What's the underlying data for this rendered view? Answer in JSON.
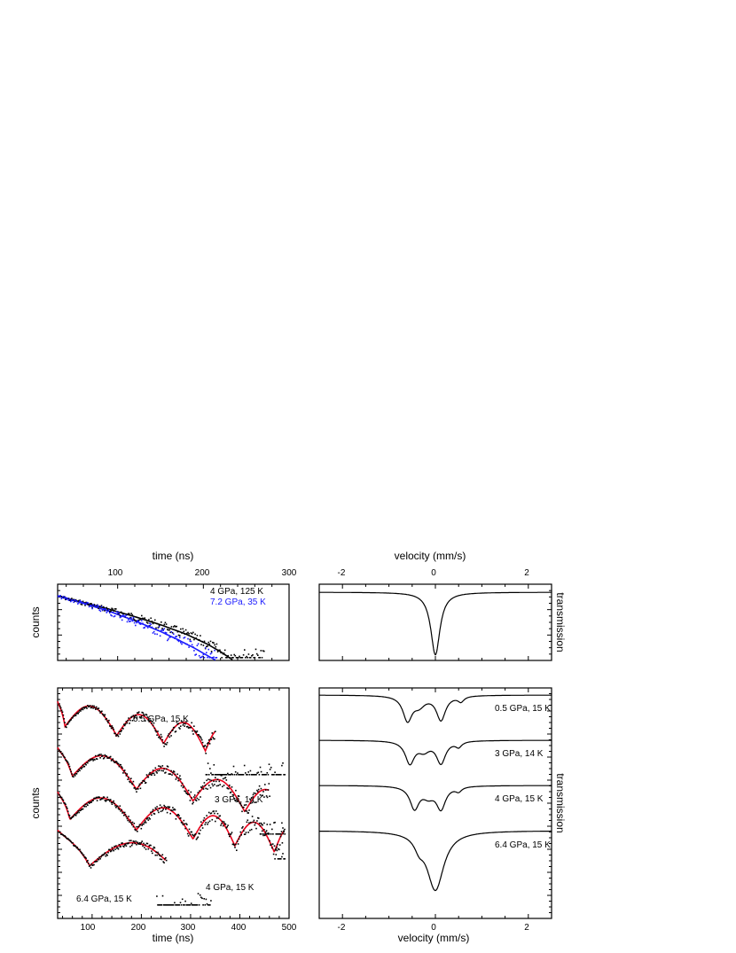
{
  "chart_data": [
    {
      "type": "scatter",
      "panel": "time-top",
      "xlabel_top": "time (ns)",
      "ylabel": "counts",
      "xlim": [
        30,
        300
      ],
      "x_ticks": [
        "100",
        "200",
        "300"
      ],
      "y_scale": "log",
      "series": [
        {
          "name": "4 GPa, 125 K",
          "color": "#000000",
          "fit": {
            "x": [
              30,
              60,
              90,
              120,
              150,
              180,
              205,
              220,
              235
            ],
            "y": [
              0.96,
              0.86,
              0.76,
              0.65,
              0.53,
              0.39,
              0.24,
              0.13,
              0.0
            ]
          },
          "points_x_range": [
            30,
            270
          ]
        },
        {
          "name": "7.2 GPa, 35 K",
          "color": "#1a1aff",
          "fit": {
            "x": [
              30,
              60,
              90,
              120,
              150,
              170,
              190,
              205,
              215
            ],
            "y": [
              0.96,
              0.85,
              0.73,
              0.59,
              0.43,
              0.31,
              0.18,
              0.07,
              0.0
            ]
          },
          "points_x_range": [
            30,
            215
          ]
        }
      ]
    },
    {
      "type": "line",
      "panel": "velocity-top",
      "xlabel_top": "velocity (mm/s)",
      "ylabel_right": "transmission",
      "xlim": [
        -2.5,
        2.5
      ],
      "x_ticks": [
        "-2",
        "0",
        "2"
      ],
      "series": [
        {
          "name": "",
          "center": 0.0,
          "width": 0.12,
          "depth": 0.93,
          "baseline": 0.96
        }
      ]
    },
    {
      "type": "scatter",
      "panel": "time-bottom",
      "xlabel": "time (ns)",
      "ylabel": "counts",
      "xlim": [
        30,
        500
      ],
      "x_ticks": [
        "100",
        "200",
        "300",
        "400",
        "500"
      ],
      "y_scale": "log",
      "series": [
        {
          "name": "0.5 GPa, 15 K",
          "color": "#000000",
          "fit_color": "#e8001a",
          "minima": [
            45,
            150,
            245,
            330
          ],
          "fit_end": 350,
          "floor_end": 490
        },
        {
          "name": "3 GPa, 14 K",
          "color": "#000000",
          "fit_color": "#e8001a",
          "minima": [
            60,
            190,
            305,
            410
          ],
          "fit_end": 460,
          "floor_end": 490
        },
        {
          "name": "4 GPa, 15 K",
          "color": "#000000",
          "fit_color": "#e8001a",
          "minima": [
            55,
            190,
            305,
            390,
            470
          ],
          "fit_end": 490,
          "floor_end": 490
        },
        {
          "name": "6.4 GPa, 15 K",
          "color": "#000000",
          "fit_color": "#e8001a",
          "minima": [
            95
          ],
          "fit_end": 250,
          "floor_end": 340
        }
      ]
    },
    {
      "type": "line",
      "panel": "velocity-bottom",
      "xlabel": "velocity (mm/s)",
      "ylabel_right": "transmission",
      "xlim": [
        -2.5,
        2.5
      ],
      "x_ticks": [
        "-2",
        "0",
        "2"
      ],
      "series": [
        {
          "name": "0.5 GPa, 15 K",
          "offset": 0.0,
          "components": [
            {
              "c": -0.6,
              "w": 0.12,
              "d": 0.55
            },
            {
              "c": 0.12,
              "w": 0.12,
              "d": 0.55
            },
            {
              "c": -0.35,
              "w": 0.15,
              "d": 0.2
            },
            {
              "c": 0.55,
              "w": 0.08,
              "d": 0.12
            }
          ]
        },
        {
          "name": "3 GPa, 14 K",
          "offset": 1.0,
          "components": [
            {
              "c": -0.55,
              "w": 0.12,
              "d": 0.5
            },
            {
              "c": 0.12,
              "w": 0.12,
              "d": 0.5
            },
            {
              "c": -0.25,
              "w": 0.15,
              "d": 0.2
            },
            {
              "c": 0.5,
              "w": 0.08,
              "d": 0.12
            }
          ]
        },
        {
          "name": "4 GPa, 15 K",
          "offset": 2.0,
          "components": [
            {
              "c": -0.45,
              "w": 0.12,
              "d": 0.5
            },
            {
              "c": 0.12,
              "w": 0.12,
              "d": 0.5
            },
            {
              "c": -0.15,
              "w": 0.15,
              "d": 0.2
            },
            {
              "c": 0.5,
              "w": 0.08,
              "d": 0.1
            }
          ]
        },
        {
          "name": "6.4 GPa, 15 K",
          "offset": 3.0,
          "components": [
            {
              "c": 0.0,
              "w": 0.22,
              "d": 0.85
            },
            {
              "c": -0.35,
              "w": 0.12,
              "d": 0.15
            }
          ]
        }
      ]
    }
  ]
}
